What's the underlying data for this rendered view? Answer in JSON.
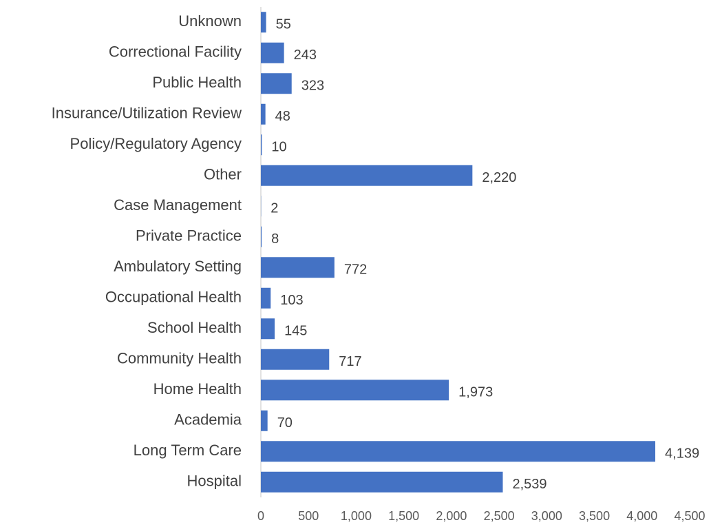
{
  "chart_data": {
    "type": "bar",
    "orientation": "horizontal",
    "categories": [
      "Unknown",
      "Correctional Facility",
      "Public Health",
      "Insurance/Utilization Review",
      "Policy/Regulatory Agency",
      "Other",
      "Case Management",
      "Private Practice",
      "Ambulatory Setting",
      "Occupational Health",
      "School Health",
      "Community Health",
      "Home Health",
      "Academia",
      "Long Term Care",
      "Hospital"
    ],
    "values": [
      55,
      243,
      323,
      48,
      10,
      2220,
      2,
      8,
      772,
      103,
      145,
      717,
      1973,
      70,
      4139,
      2539
    ],
    "value_labels": [
      "55",
      "243",
      "323",
      "48",
      "10",
      "2,220",
      "2",
      "8",
      "772",
      "103",
      "145",
      "717",
      "1,973",
      "70",
      "4,139",
      "2,539"
    ],
    "color": "#4472c4",
    "xlim": [
      0,
      4500
    ],
    "xticks": [
      0,
      500,
      {
        "value": 1000,
        "label": "1,000"
      },
      {
        "value": 1500,
        "label": "1,500"
      },
      {
        "value": 2000,
        "label": "2,000"
      },
      {
        "value": 2500,
        "label": "2,500"
      },
      {
        "value": 3000,
        "label": "3,000"
      },
      {
        "value": 3500,
        "label": "3,500"
      },
      {
        "value": 4000,
        "label": "4,000"
      },
      {
        "value": 4500,
        "label": "4,500"
      }
    ],
    "grid": false
  }
}
